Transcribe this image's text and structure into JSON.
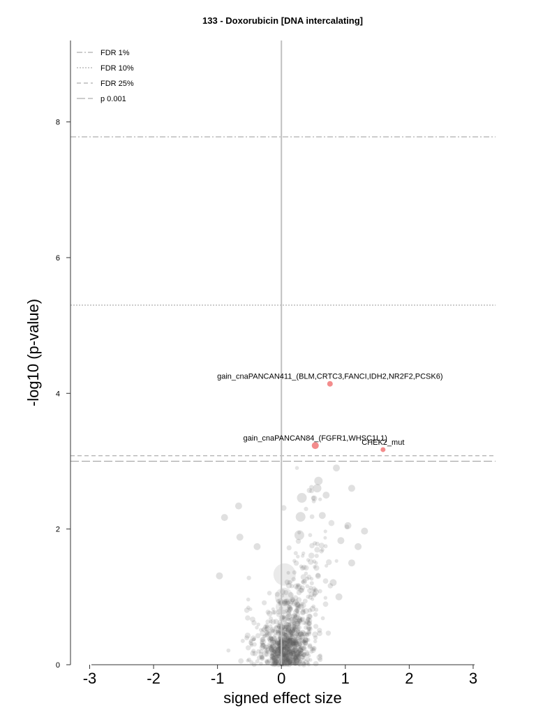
{
  "chart_data": {
    "type": "scatter",
    "title": "133 - Doxorubicin [DNA intercalating]",
    "xlabel": "signed effect size",
    "ylabel": "-log10 (p-value)",
    "xlim": [
      -3.3,
      3.35
    ],
    "ylim": [
      0,
      9.2
    ],
    "xticks": [
      "-3",
      "-2",
      "-1",
      "0",
      "1",
      "2",
      "3"
    ],
    "yticks": [
      "0",
      "2",
      "4",
      "6",
      "8"
    ],
    "legend_position": "top-left",
    "thresholds": [
      {
        "name": "FDR 1%",
        "y": 7.78,
        "style": "dashdot"
      },
      {
        "name": "FDR 10%",
        "y": 5.3,
        "style": "dotted"
      },
      {
        "name": "FDR 25%",
        "y": 3.08,
        "style": "dashed"
      },
      {
        "name": "p 0.001",
        "y": 3.0,
        "style": "longdash"
      }
    ],
    "highlighted": [
      {
        "label": "gain_cnaPANCAN411_(BLM,CRTC3,FANCI,IDH2,NR2F2,PCSK6)",
        "x": 0.76,
        "y": 4.14,
        "size": 7
      },
      {
        "label": "gain_cnaPANCAN84_(FGFR1,WHSC1L1)",
        "x": 0.53,
        "y": 3.23,
        "size": 9
      },
      {
        "label": "CHEK2_mut",
        "x": 1.59,
        "y": 3.17,
        "size": 6
      }
    ],
    "scatter_clusters": [
      {
        "x": 0.05,
        "y": 0.2,
        "sx": 0.17,
        "sy": 0.17,
        "count": 420
      },
      {
        "x": 0.18,
        "y": 0.55,
        "sx": 0.2,
        "sy": 0.3,
        "count": 240
      },
      {
        "x": 0.38,
        "y": 1.15,
        "sx": 0.17,
        "sy": 0.35,
        "count": 70
      },
      {
        "x": -0.2,
        "y": 0.4,
        "sx": 0.2,
        "sy": 0.25,
        "count": 110
      },
      {
        "x": 0.6,
        "y": 1.9,
        "sx": 0.17,
        "sy": 0.45,
        "count": 30
      }
    ],
    "scatter_extra": [
      {
        "x": -0.97,
        "y": 1.31,
        "size": 5
      },
      {
        "x": -0.89,
        "y": 2.17,
        "size": 5
      },
      {
        "x": -0.67,
        "y": 2.34,
        "size": 5
      },
      {
        "x": -0.65,
        "y": 1.88,
        "size": 5
      },
      {
        "x": -0.38,
        "y": 1.74,
        "size": 5
      },
      {
        "x": 0.05,
        "y": 1.33,
        "size": 16
      },
      {
        "x": 0.04,
        "y": 1.0,
        "size": 13
      },
      {
        "x": 0.02,
        "y": 0.85,
        "size": 10
      },
      {
        "x": 0.32,
        "y": 2.46,
        "size": 7
      },
      {
        "x": 0.3,
        "y": 2.18,
        "size": 7
      },
      {
        "x": 0.28,
        "y": 1.91,
        "size": 7
      },
      {
        "x": 0.56,
        "y": 2.6,
        "size": 6
      },
      {
        "x": 0.58,
        "y": 2.71,
        "size": 6
      },
      {
        "x": 0.64,
        "y": 2.2,
        "size": 5
      },
      {
        "x": 0.7,
        "y": 2.5,
        "size": 5
      },
      {
        "x": 0.86,
        "y": 2.9,
        "size": 5
      },
      {
        "x": 1.1,
        "y": 2.6,
        "size": 5
      },
      {
        "x": 1.2,
        "y": 1.74,
        "size": 5
      },
      {
        "x": 1.3,
        "y": 1.97,
        "size": 5
      },
      {
        "x": 1.04,
        "y": 2.05,
        "size": 5
      },
      {
        "x": 0.93,
        "y": 1.83,
        "size": 5
      },
      {
        "x": 0.81,
        "y": 1.21,
        "size": 5
      },
      {
        "x": 0.9,
        "y": 1.0,
        "size": 5
      },
      {
        "x": 1.1,
        "y": 1.5,
        "size": 5
      }
    ]
  }
}
